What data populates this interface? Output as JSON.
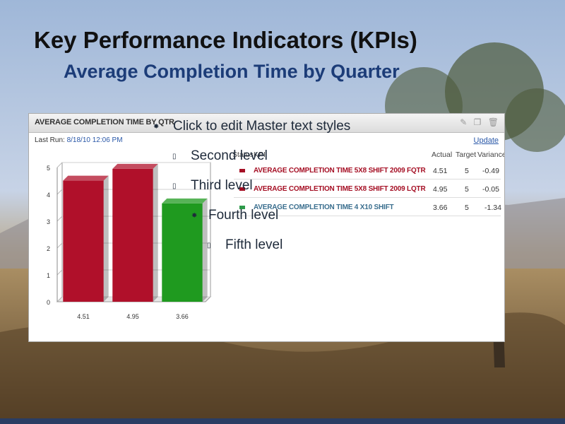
{
  "slide": {
    "title": "Key Performance Indicators (KPIs)",
    "subtitle": "Average Completion Time by Quarter"
  },
  "panel": {
    "title": "AVERAGE COMPLETION TIME BY QTR",
    "last_run_label": "Last Run:",
    "last_run_value": "8/18/10 12:06 PM",
    "update_label": "Update",
    "headers": {
      "status": "Status",
      "kpi": "KPI",
      "actual": "Actual",
      "target": "Target",
      "variance": "Variance"
    },
    "rows": [
      {
        "name": "AVERAGE COMPLETION TIME 5X8 SHIFT 2009 FQTR",
        "actual": "4.51",
        "target": "5",
        "variance": "-0.49",
        "color": "#a50f24"
      },
      {
        "name": "AVERAGE COMPLETION TIME 5X8 SHIFT 2009 LQTR",
        "actual": "4.95",
        "target": "5",
        "variance": "-0.05",
        "color": "#a50f24"
      },
      {
        "name": "AVERAGE COMPLETION TIME 4 X10 SHIFT",
        "actual": "3.66",
        "target": "5",
        "variance": "-1.34",
        "color": "#3a6e8e"
      }
    ]
  },
  "chart_data": {
    "type": "bar",
    "categories": [
      "4.51",
      "4.95",
      "3.66"
    ],
    "values": [
      4.51,
      4.95,
      3.66
    ],
    "colors": [
      "#b0102a",
      "#b0102a",
      "#1f9a1f"
    ],
    "ylim": [
      0,
      5
    ],
    "yticks": [
      "0",
      "1",
      "2",
      "3",
      "4",
      "5"
    ],
    "grid": true
  },
  "placeholder_text": {
    "level1": "Click to edit Master text styles",
    "level2": "Second level",
    "level3": "Third level",
    "level4": "Fourth level",
    "level5": "Fifth level"
  }
}
